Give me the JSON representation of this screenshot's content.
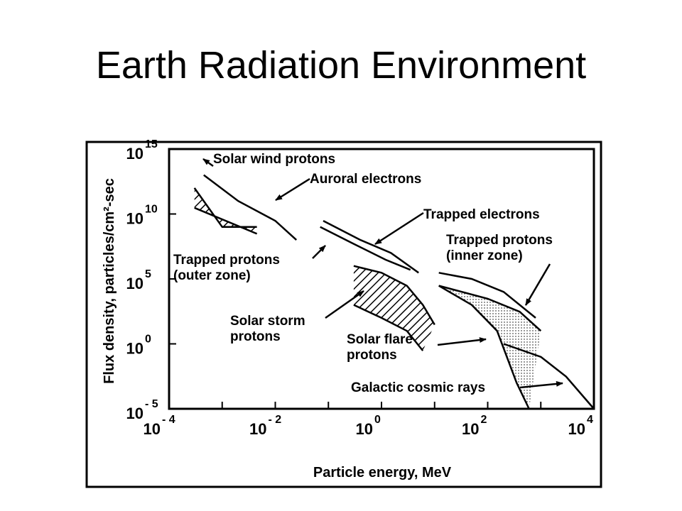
{
  "slide": {
    "title": "Earth Radiation Environment"
  },
  "chart_data": {
    "type": "line",
    "xlabel": "Particle energy, MeV",
    "ylabel": "Flux density, particles/cm²-sec",
    "x_scale": "log",
    "y_scale": "log",
    "xlim": [
      0.0001,
      10000
    ],
    "ylim": [
      1e-05,
      1000000000000000
    ],
    "x_ticks": [
      {
        "mantissa": "10",
        "exp": "- 4"
      },
      {
        "mantissa": "10",
        "exp": "- 2"
      },
      {
        "mantissa": "10",
        "exp": "0"
      },
      {
        "mantissa": "10",
        "exp": "2"
      },
      {
        "mantissa": "10",
        "exp": "4"
      }
    ],
    "y_ticks": [
      {
        "mantissa": "10",
        "exp": "- 5"
      },
      {
        "mantissa": "10",
        "exp": "0"
      },
      {
        "mantissa": "10",
        "exp": "5"
      },
      {
        "mantissa": "10",
        "exp": "10"
      },
      {
        "mantissa": "10",
        "exp": "15"
      }
    ],
    "grid": false,
    "legend": "none",
    "series": [
      {
        "name": "Solar wind protons",
        "kind": "band",
        "upper": [
          [
            0.0003,
            1000000000000
          ],
          [
            0.001,
            1000000000
          ],
          [
            0.0045,
            1000000000
          ]
        ],
        "lower": [
          [
            0.0003,
            30000000000
          ],
          [
            0.0045,
            300000000
          ]
        ]
      },
      {
        "name": "Auroral electrons",
        "kind": "line",
        "points": [
          [
            0.00045,
            10000000000000
          ],
          [
            0.002,
            100000000000
          ],
          [
            0.01,
            3000000000
          ],
          [
            0.025,
            100000000
          ]
        ]
      },
      {
        "name": "Trapped electrons",
        "kind": "line",
        "points": [
          [
            0.08,
            3000000000
          ],
          [
            0.4,
            100000000
          ],
          [
            1.5,
            10000000
          ],
          [
            5,
            300000
          ]
        ]
      },
      {
        "name": "Trapped protons (outer zone)",
        "kind": "line",
        "points": [
          [
            0.07,
            1000000000
          ],
          [
            0.3,
            50000000
          ],
          [
            1.2,
            3000000
          ],
          [
            3.5,
            500000
          ]
        ]
      },
      {
        "name": "Solar storm protons",
        "kind": "band",
        "upper": [
          [
            0.3,
            1000000
          ],
          [
            1,
            300000
          ],
          [
            3,
            30000
          ],
          [
            6,
            1000
          ],
          [
            10,
            30
          ]
        ],
        "lower": [
          [
            0.3,
            1000
          ],
          [
            1,
            100
          ],
          [
            3,
            10
          ],
          [
            6,
            0.3
          ]
        ]
      },
      {
        "name": "Trapped protons (inner zone)",
        "kind": "line",
        "points": [
          [
            12,
            300000
          ],
          [
            50,
            100000
          ],
          [
            200,
            10000
          ],
          [
            800,
            100
          ]
        ]
      },
      {
        "name": "Solar flare protons",
        "kind": "band",
        "upper": [
          [
            12,
            30000
          ],
          [
            100,
            3000
          ],
          [
            400,
            300
          ],
          [
            1000,
            10
          ]
        ],
        "lower": [
          [
            12,
            30000
          ],
          [
            50,
            1000
          ],
          [
            150,
            10
          ],
          [
            350,
            0.001
          ],
          [
            600,
            1e-05
          ]
        ]
      },
      {
        "name": "Galactic cosmic rays",
        "kind": "line",
        "points": [
          [
            200,
            1
          ],
          [
            1000,
            0.1
          ],
          [
            3000,
            0.003
          ],
          [
            10000,
            1e-05
          ]
        ]
      }
    ],
    "annotations": [
      {
        "lines": [
          "Solar wind protons"
        ]
      },
      {
        "lines": [
          "Auroral electrons"
        ]
      },
      {
        "lines": [
          "Trapped electrons"
        ]
      },
      {
        "lines": [
          "Trapped protons",
          "(inner zone)"
        ]
      },
      {
        "lines": [
          "Trapped protons",
          "(outer zone)"
        ]
      },
      {
        "lines": [
          "Solar storm",
          "protons"
        ]
      },
      {
        "lines": [
          "Solar flare",
          "protons"
        ]
      },
      {
        "lines": [
          "Galactic cosmic rays"
        ]
      }
    ]
  }
}
